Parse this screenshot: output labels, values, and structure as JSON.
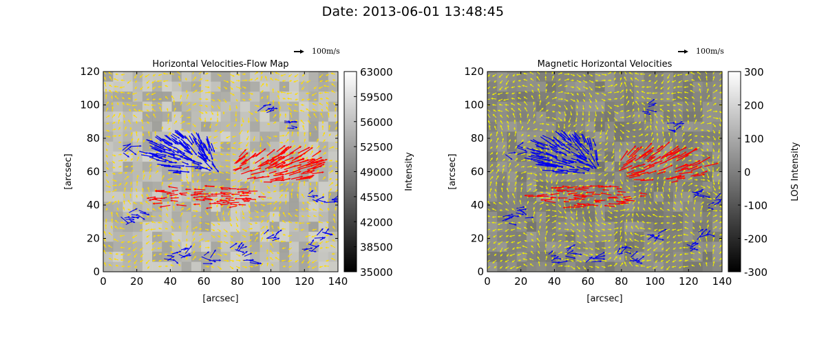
{
  "figure": {
    "suptitle": "Date: 2013-06-01 13:48:45"
  },
  "chart_data": [
    {
      "type": "heatmap",
      "title": "Horizontal Velocities-Flow Map",
      "xlabel": "[arcsec]",
      "ylabel": "[arcsec]",
      "xlim": [
        0,
        140
      ],
      "ylim": [
        0,
        120
      ],
      "x_ticks": [
        "0",
        "20",
        "40",
        "60",
        "80",
        "100",
        "120",
        "140"
      ],
      "y_ticks": [
        "0",
        "20",
        "40",
        "60",
        "80",
        "100",
        "120"
      ],
      "colorbar": {
        "label": "Intensity",
        "ticks": [
          "35000",
          "38500",
          "42000",
          "45500",
          "49000",
          "52500",
          "56000",
          "59500",
          "63000"
        ],
        "range": [
          35000,
          63000
        ],
        "colormap": "gray"
      },
      "quiver_key": "100m/s",
      "vector_colors": {
        "background": "#ffdd00",
        "blue_region": "#0000ee",
        "red_region": "#ff0000"
      },
      "grid": false
    },
    {
      "type": "heatmap",
      "title": "Magnetic Horizontal Velocities",
      "xlabel": "[arcsec]",
      "ylabel": "[arcsec]",
      "xlim": [
        0,
        140
      ],
      "ylim": [
        0,
        120
      ],
      "x_ticks": [
        "0",
        "20",
        "40",
        "60",
        "80",
        "100",
        "120",
        "140"
      ],
      "y_ticks": [
        "0",
        "20",
        "40",
        "60",
        "80",
        "100",
        "120"
      ],
      "colorbar": {
        "label": "LOS Intensity",
        "ticks": [
          "-300",
          "-200",
          "-100",
          "0",
          "100",
          "200",
          "300"
        ],
        "range": [
          -300,
          300
        ],
        "colormap": "gray"
      },
      "quiver_key": "100m/s",
      "vector_colors": {
        "background": "#eeee00",
        "blue_region": "#0000ee",
        "red_region": "#ff0000"
      },
      "grid": false
    }
  ]
}
